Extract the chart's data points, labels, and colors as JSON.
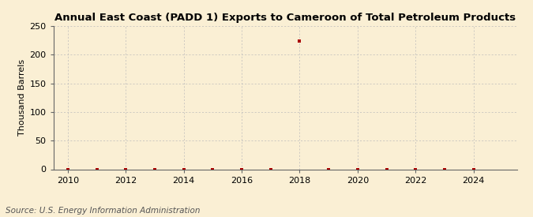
{
  "title": "Annual East Coast (PADD 1) Exports to Cameroon of Total Petroleum Products",
  "ylabel": "Thousand Barrels",
  "source": "Source: U.S. Energy Information Administration",
  "background_color": "#faefd4",
  "years": [
    2010,
    2011,
    2012,
    2013,
    2014,
    2015,
    2016,
    2017,
    2018,
    2019,
    2020,
    2021,
    2022,
    2023,
    2024
  ],
  "values": [
    0,
    0,
    0,
    0,
    0,
    0,
    0,
    0,
    224,
    0,
    0,
    0,
    0,
    0,
    0
  ],
  "marker_color": "#aa0000",
  "grid_color": "#bbbbbb",
  "xlim": [
    2009.5,
    2025.5
  ],
  "ylim": [
    0,
    250
  ],
  "yticks": [
    0,
    50,
    100,
    150,
    200,
    250
  ],
  "xticks": [
    2010,
    2012,
    2014,
    2016,
    2018,
    2020,
    2022,
    2024
  ],
  "title_fontsize": 9.5,
  "axis_fontsize": 8,
  "tick_fontsize": 8,
  "source_fontsize": 7.5
}
